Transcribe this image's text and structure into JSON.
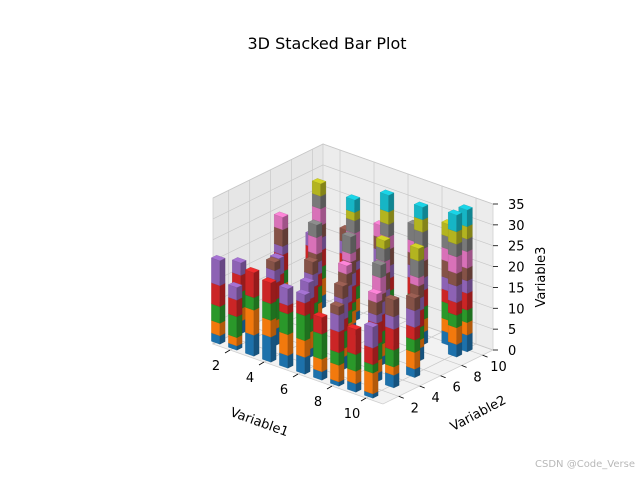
{
  "chart_data": {
    "type": "bar",
    "subtype": "3d-stacked",
    "title": "3D Stacked Bar Plot",
    "xlabel": "Variable1",
    "ylabel": "Variable2",
    "zlabel": "Variable3",
    "x_ticks": [
      "2",
      "4",
      "6",
      "8",
      "10"
    ],
    "y_ticks": [
      "2",
      "4",
      "6",
      "8",
      "10"
    ],
    "z_ticks": [
      "0",
      "5",
      "10",
      "15",
      "20",
      "25",
      "30",
      "35"
    ],
    "xlim": [
      1,
      11
    ],
    "ylim": [
      0.5,
      11
    ],
    "zlim": [
      0,
      35
    ],
    "grid": true,
    "layer_colors": [
      "#1f77b4",
      "#ff7f0e",
      "#2ca02c",
      "#d62728",
      "#9467bd",
      "#8c564b",
      "#e377c2",
      "#7f7f7f",
      "#bcbd22",
      "#17becf"
    ],
    "bars": [
      {
        "x": 1,
        "y": 1,
        "heights": [
          2,
          3,
          4,
          5,
          6
        ]
      },
      {
        "x": 2,
        "y": 1,
        "heights": [
          1,
          2,
          5,
          4,
          3
        ]
      },
      {
        "x": 3,
        "y": 1,
        "heights": [
          5,
          6,
          3,
          6
        ]
      },
      {
        "x": 4,
        "y": 1,
        "heights": [
          6,
          4,
          4,
          5
        ]
      },
      {
        "x": 5,
        "y": 1,
        "heights": [
          3,
          5,
          5,
          2,
          4
        ]
      },
      {
        "x": 6,
        "y": 1,
        "heights": [
          4,
          4,
          6,
          3,
          2
        ]
      },
      {
        "x": 7,
        "y": 1,
        "heights": [
          2,
          3,
          6,
          4
        ]
      },
      {
        "x": 8,
        "y": 1,
        "heights": [
          1,
          4,
          3,
          5,
          4,
          2
        ]
      },
      {
        "x": 9,
        "y": 1,
        "heights": [
          2,
          3,
          4,
          6
        ]
      },
      {
        "x": 10,
        "y": 1,
        "heights": [
          1,
          5,
          2,
          4,
          5
        ]
      },
      {
        "x": 1,
        "y": 3,
        "heights": [
          3,
          3,
          4,
          4,
          3
        ]
      },
      {
        "x": 3,
        "y": 3,
        "heights": [
          4,
          2,
          5,
          4,
          3,
          2
        ]
      },
      {
        "x": 5,
        "y": 3,
        "heights": [
          2,
          4,
          3,
          5,
          4
        ]
      },
      {
        "x": 7,
        "y": 3,
        "heights": [
          3,
          2,
          4,
          3,
          5,
          3
        ]
      },
      {
        "x": 9,
        "y": 3,
        "heights": [
          2,
          3,
          4,
          5,
          2,
          3,
          2
        ]
      },
      {
        "x": 10,
        "y": 3,
        "heights": [
          3,
          2,
          4,
          5,
          3,
          4
        ]
      },
      {
        "x": 2,
        "y": 5,
        "heights": [
          3,
          2,
          5,
          3,
          4
        ]
      },
      {
        "x": 4,
        "y": 5,
        "heights": [
          2,
          3,
          4,
          4,
          3,
          3
        ]
      },
      {
        "x": 6,
        "y": 5,
        "heights": [
          3,
          4,
          3,
          2,
          4,
          3,
          2
        ]
      },
      {
        "x": 8,
        "y": 5,
        "heights": [
          2,
          3,
          3,
          4,
          3,
          2,
          4,
          3
        ]
      },
      {
        "x": 10,
        "y": 5,
        "heights": [
          2,
          4,
          3,
          3,
          4,
          3
        ]
      },
      {
        "x": 1,
        "y": 7,
        "heights": [
          3,
          4,
          3,
          4,
          2,
          4,
          3
        ]
      },
      {
        "x": 3,
        "y": 7,
        "heights": [
          2,
          3,
          4,
          3,
          3,
          2,
          4,
          3
        ]
      },
      {
        "x": 5,
        "y": 7,
        "heights": [
          3,
          3,
          2,
          4,
          3,
          3,
          2,
          4
        ]
      },
      {
        "x": 7,
        "y": 7,
        "heights": [
          2,
          4,
          3,
          3,
          2,
          4,
          3,
          3,
          2
        ]
      },
      {
        "x": 9,
        "y": 7,
        "heights": [
          3,
          2,
          3,
          4,
          3,
          3,
          2,
          4,
          3
        ]
      },
      {
        "x": 2,
        "y": 9,
        "heights": [
          3,
          4,
          3,
          4,
          3,
          3,
          4,
          3,
          3
        ]
      },
      {
        "x": 4,
        "y": 9,
        "heights": [
          2,
          3,
          3,
          4,
          2,
          3,
          4,
          3,
          2,
          3
        ]
      },
      {
        "x": 6,
        "y": 9,
        "heights": [
          3,
          3,
          4,
          3,
          3,
          4,
          3,
          3,
          3,
          4
        ]
      },
      {
        "x": 8,
        "y": 9,
        "heights": [
          3,
          3,
          3,
          4,
          3,
          4,
          3,
          4,
          3,
          3
        ]
      },
      {
        "x": 10,
        "y": 9,
        "heights": [
          3,
          4,
          3,
          3,
          4,
          3,
          4,
          3,
          3,
          4
        ]
      },
      {
        "x": 1,
        "y": 10,
        "heights": [
          2,
          3,
          3,
          4,
          3
        ]
      },
      {
        "x": 3,
        "y": 10,
        "heights": [
          3,
          3,
          4,
          3,
          3,
          3
        ]
      },
      {
        "x": 5,
        "y": 10,
        "heights": [
          3,
          4,
          3,
          3,
          4,
          3,
          3
        ]
      },
      {
        "x": 7,
        "y": 10,
        "heights": [
          3,
          3,
          3,
          4,
          3,
          3,
          3,
          4
        ]
      },
      {
        "x": 9,
        "y": 10,
        "heights": [
          3,
          3,
          4,
          3,
          3,
          4,
          3,
          3,
          3
        ]
      },
      {
        "x": 10,
        "y": 10,
        "heights": [
          4,
          3,
          3,
          4,
          3,
          3,
          4,
          3,
          3,
          4
        ]
      }
    ]
  },
  "watermark": "CSDN @Code_Verse"
}
